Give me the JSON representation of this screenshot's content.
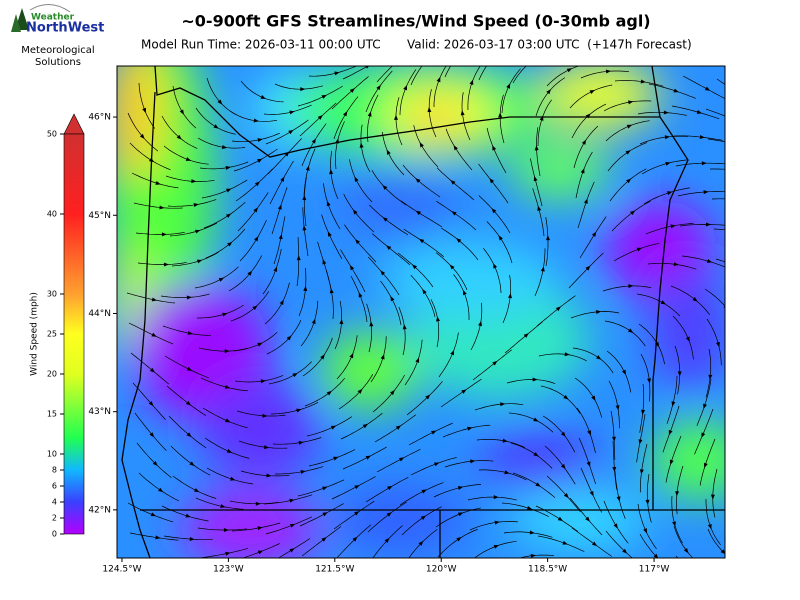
{
  "header": {
    "title": "~0-900ft GFS Streamlines/Wind Speed (0-30mb agl)",
    "run_time": "Model Run Time: 2026-03-11 00:00 UTC",
    "valid_time": "Valid: 2026-03-17 03:00 UTC  (+147h Forecast)"
  },
  "logo": {
    "top": "Weather",
    "name": "NorthWest",
    "tagline_1": "Meteorological",
    "tagline_2": "Solutions"
  },
  "colorbar": {
    "label": "Wind Speed (mph)",
    "lim": [
      0,
      50
    ],
    "ticks": [
      0,
      2,
      4,
      6,
      8,
      10,
      15,
      20,
      25,
      30,
      40,
      50
    ]
  },
  "map": {
    "xlim": [
      -124.57,
      -116.0
    ],
    "ylim": [
      41.51,
      46.52
    ],
    "xticks": [
      {
        "value": -124.5,
        "label": "124.5°W"
      },
      {
        "value": -123,
        "label": "123°W"
      },
      {
        "value": -121.5,
        "label": "121.5°W"
      },
      {
        "value": -120,
        "label": "120°W"
      },
      {
        "value": -118.5,
        "label": "118.5°W"
      },
      {
        "value": -117,
        "label": "117°W"
      }
    ],
    "yticks": [
      {
        "value": 42,
        "label": "42°N"
      },
      {
        "value": 43,
        "label": "43°N"
      },
      {
        "value": 44,
        "label": "44°N"
      },
      {
        "value": 45,
        "label": "45°N"
      },
      {
        "value": 46,
        "label": "46°N"
      }
    ]
  }
}
